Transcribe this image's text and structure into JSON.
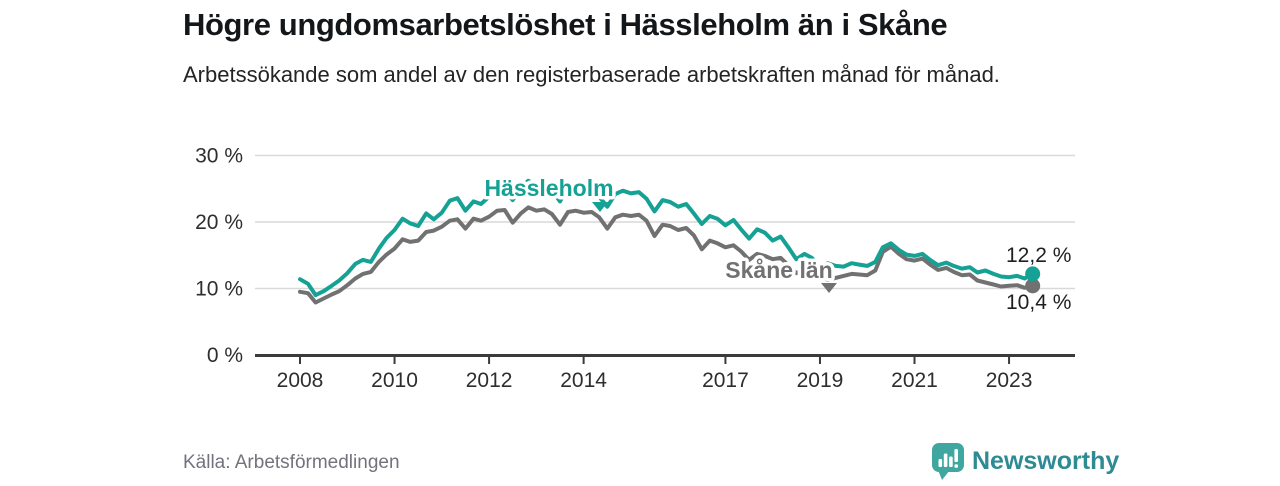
{
  "header": {
    "title": "Högre ungdomsarbetslöshet i Hässleholm än i Skåne",
    "subtitle": "Arbetssökande som andel av den registerbaserade arbetskraften månad för månad."
  },
  "footer": {
    "source": "Källa: Arbetsförmedlingen",
    "brand": "Newsworthy",
    "brand_text_color": "#2e8a93",
    "brand_icon": "newsworthy-speech-bubble-bar-chart-icon",
    "brand_icon_color": "#40a7a0"
  },
  "chart_data": {
    "type": "line",
    "title": "Högre ungdomsarbetslöshet i Hässleholm än i Skåne",
    "subtitle": "Arbetssökande som andel av den registerbaserade arbetskraften månad för månad.",
    "xlabel": "",
    "ylabel": "%",
    "ylim": [
      0,
      30
    ],
    "xlim": [
      2007.05,
      2024.4
    ],
    "grid": "horizontal",
    "legend": "inline-series-labels",
    "colors": {
      "grid": "#d9d9d9",
      "axis": "#3b3b3b"
    },
    "y_ticks": [
      {
        "value": 0,
        "label": "0 %"
      },
      {
        "value": 10,
        "label": "10 %"
      },
      {
        "value": 20,
        "label": "20 %"
      },
      {
        "value": 30,
        "label": "30 %"
      }
    ],
    "x_ticks": [
      {
        "year": 2008,
        "label": "2008"
      },
      {
        "year": 2010,
        "label": "2010"
      },
      {
        "year": 2012,
        "label": "2012"
      },
      {
        "year": 2014,
        "label": "2014"
      },
      {
        "year": 2017,
        "label": "2017"
      },
      {
        "year": 2019,
        "label": "2019"
      },
      {
        "year": 2021,
        "label": "2021"
      },
      {
        "year": 2023,
        "label": "2023"
      }
    ],
    "series": [
      {
        "name": "Hässleholm",
        "color": "#16a195",
        "end_label": "12,2 %",
        "x": [
          2008.0,
          2008.17,
          2008.33,
          2008.5,
          2008.67,
          2008.83,
          2009.0,
          2009.17,
          2009.33,
          2009.5,
          2009.67,
          2009.83,
          2010.0,
          2010.17,
          2010.33,
          2010.5,
          2010.67,
          2010.83,
          2011.0,
          2011.17,
          2011.33,
          2011.5,
          2011.67,
          2011.83,
          2012.0,
          2012.17,
          2012.33,
          2012.5,
          2012.67,
          2012.83,
          2013.0,
          2013.17,
          2013.33,
          2013.5,
          2013.67,
          2013.83,
          2014.0,
          2014.17,
          2014.33,
          2014.5,
          2014.67,
          2014.83,
          2015.0,
          2015.17,
          2015.33,
          2015.5,
          2015.67,
          2015.83,
          2016.0,
          2016.17,
          2016.33,
          2016.5,
          2016.67,
          2016.83,
          2017.0,
          2017.17,
          2017.33,
          2017.5,
          2017.67,
          2017.83,
          2018.0,
          2018.17,
          2018.33,
          2018.5,
          2018.67,
          2018.83,
          2019.0,
          2019.17,
          2019.33,
          2019.5,
          2019.67,
          2019.83,
          2020.0,
          2020.17,
          2020.33,
          2020.5,
          2020.67,
          2020.83,
          2021.0,
          2021.17,
          2021.33,
          2021.5,
          2021.67,
          2021.83,
          2022.0,
          2022.17,
          2022.33,
          2022.5,
          2022.67,
          2022.83,
          2023.0,
          2023.17,
          2023.33,
          2023.5
        ],
        "y": [
          11.4,
          10.7,
          9.0,
          9.6,
          10.4,
          11.2,
          12.3,
          13.7,
          14.3,
          14.0,
          16.0,
          17.6,
          18.8,
          20.5,
          19.8,
          19.4,
          21.3,
          20.4,
          21.4,
          23.2,
          23.6,
          21.7,
          23.1,
          22.7,
          23.8,
          25.4,
          24.8,
          23.3,
          25.2,
          26.2,
          25.6,
          25.9,
          24.7,
          23.1,
          25.2,
          25.6,
          25.3,
          25.5,
          23.8,
          22.3,
          24.2,
          24.7,
          24.3,
          24.5,
          23.5,
          21.6,
          23.3,
          23.0,
          22.3,
          22.7,
          21.3,
          19.7,
          20.9,
          20.5,
          19.5,
          20.3,
          18.9,
          17.5,
          18.9,
          18.4,
          17.2,
          17.8,
          16.2,
          14.4,
          15.2,
          14.6,
          13.2,
          13.8,
          13.4,
          13.3,
          13.8,
          13.6,
          13.4,
          14.0,
          16.2,
          16.8,
          15.8,
          15.1,
          14.9,
          15.2,
          14.3,
          13.5,
          13.9,
          13.4,
          13.0,
          13.2,
          12.4,
          12.7,
          12.2,
          11.8,
          11.7,
          11.9,
          11.5,
          12.2
        ]
      },
      {
        "name": "Skåne län",
        "color": "#717171",
        "end_label": "10,4 %",
        "x": [
          2008.0,
          2008.17,
          2008.33,
          2008.5,
          2008.67,
          2008.83,
          2009.0,
          2009.17,
          2009.33,
          2009.5,
          2009.67,
          2009.83,
          2010.0,
          2010.17,
          2010.33,
          2010.5,
          2010.67,
          2010.83,
          2011.0,
          2011.17,
          2011.33,
          2011.5,
          2011.67,
          2011.83,
          2012.0,
          2012.17,
          2012.33,
          2012.5,
          2012.67,
          2012.83,
          2013.0,
          2013.17,
          2013.33,
          2013.5,
          2013.67,
          2013.83,
          2014.0,
          2014.17,
          2014.33,
          2014.5,
          2014.67,
          2014.83,
          2015.0,
          2015.17,
          2015.33,
          2015.5,
          2015.67,
          2015.83,
          2016.0,
          2016.17,
          2016.33,
          2016.5,
          2016.67,
          2016.83,
          2017.0,
          2017.17,
          2017.33,
          2017.5,
          2017.67,
          2017.83,
          2018.0,
          2018.17,
          2018.33,
          2018.5,
          2018.67,
          2018.83,
          2019.0,
          2019.17,
          2019.33,
          2019.5,
          2019.67,
          2019.83,
          2020.0,
          2020.17,
          2020.33,
          2020.5,
          2020.67,
          2020.83,
          2021.0,
          2021.17,
          2021.33,
          2021.5,
          2021.67,
          2021.83,
          2022.0,
          2022.17,
          2022.33,
          2022.5,
          2022.67,
          2022.83,
          2023.0,
          2023.17,
          2023.33,
          2023.5
        ],
        "y": [
          9.5,
          9.3,
          7.9,
          8.5,
          9.1,
          9.6,
          10.5,
          11.5,
          12.2,
          12.5,
          14.0,
          15.1,
          16.0,
          17.4,
          17.0,
          17.2,
          18.5,
          18.7,
          19.3,
          20.2,
          20.4,
          19.0,
          20.5,
          20.2,
          20.8,
          21.7,
          21.8,
          19.9,
          21.3,
          22.2,
          21.7,
          21.9,
          21.2,
          19.6,
          21.5,
          21.7,
          21.4,
          21.5,
          20.7,
          19.0,
          20.7,
          21.1,
          20.9,
          21.1,
          20.2,
          17.9,
          19.6,
          19.4,
          18.8,
          19.1,
          18.0,
          15.9,
          17.2,
          16.8,
          16.2,
          16.5,
          15.6,
          14.3,
          15.2,
          14.9,
          14.4,
          14.6,
          13.5,
          12.3,
          12.9,
          12.5,
          11.8,
          11.3,
          11.6,
          11.9,
          12.2,
          12.1,
          12.0,
          12.7,
          15.5,
          16.3,
          15.2,
          14.4,
          14.2,
          14.5,
          13.6,
          12.8,
          13.1,
          12.5,
          12.0,
          12.1,
          11.2,
          10.9,
          10.6,
          10.3,
          10.4,
          10.5,
          10.1,
          10.4
        ]
      }
    ],
    "annotations": [
      {
        "series": 0,
        "label": "Hässleholm",
        "marker": "triangle-down",
        "marker_at_year": 2014.35
      },
      {
        "series": 1,
        "label": "Skåne län",
        "marker": "triangle-down",
        "marker_at_year": 2019.15
      }
    ]
  }
}
